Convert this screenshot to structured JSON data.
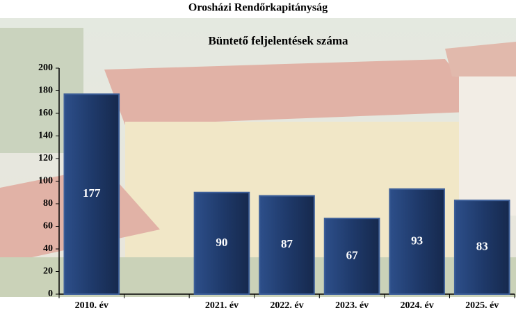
{
  "chart_data": {
    "type": "bar",
    "title": "Orosházi Rendőrkapitányság",
    "subtitle": "Büntető feljelentések száma",
    "categories": [
      "2010. év",
      null,
      "2021. év",
      "2022. év",
      "2023. év",
      "2024. év",
      "2025. év"
    ],
    "values": [
      177,
      null,
      90,
      87,
      67,
      93,
      83
    ],
    "color": "#1f3a6b",
    "ylim": [
      0,
      200
    ],
    "yticks": [
      0,
      20,
      40,
      60,
      80,
      100,
      120,
      140,
      160,
      180,
      200
    ]
  }
}
